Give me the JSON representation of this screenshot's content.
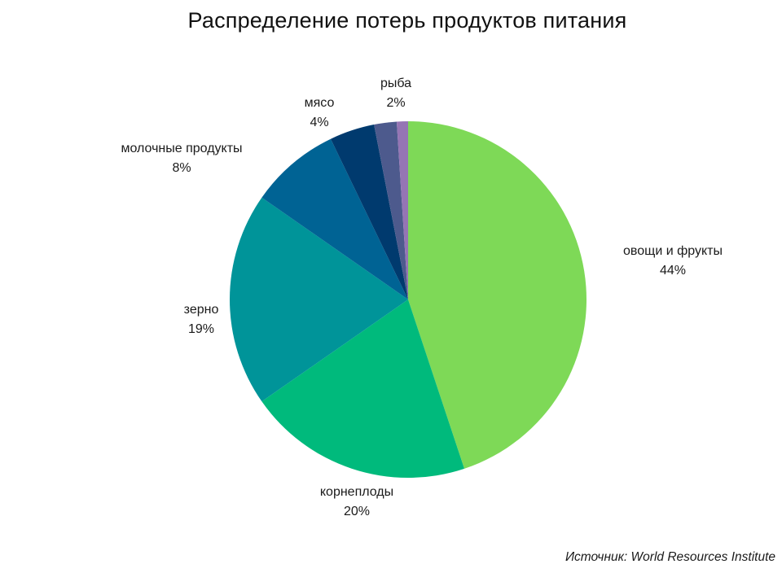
{
  "chart_data": {
    "type": "pie",
    "title": "Распределение потерь продуктов питания",
    "labels": [
      "овощи и фрукты",
      "корнеплоды",
      "зерно",
      "молочные продукты",
      "мясо",
      "рыба"
    ],
    "values": [
      44,
      20,
      19,
      8,
      4,
      2
    ],
    "value_labels": [
      "44%",
      "20%",
      "19%",
      "8%",
      "4%",
      "2%"
    ],
    "colors": [
      "#7ED957",
      "#00BA7C",
      "#009499",
      "#006394",
      "#003A6E",
      "#4D5A8D",
      "#9575B4"
    ],
    "start_angle": "12 o'clock",
    "direction": "clockwise",
    "legend": "none",
    "source": "Источник: World Resources Institute"
  }
}
